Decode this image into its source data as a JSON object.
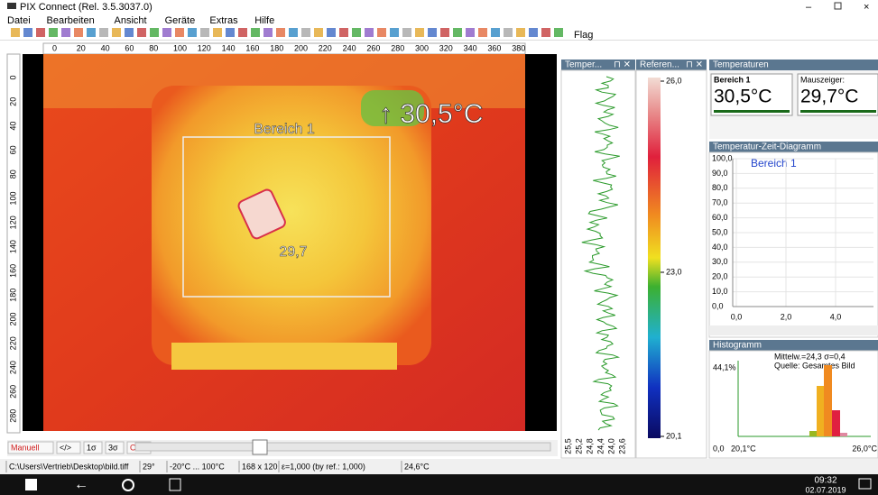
{
  "window": {
    "title": "PIX Connect (Rel. 3.5.3037.0)"
  },
  "menu": [
    "Datei",
    "Bearbeiten",
    "Ansicht",
    "Geräte",
    "Extras",
    "Hilfe"
  ],
  "toolbar": {
    "flag": "Flag"
  },
  "ruler": {
    "top": [
      "0",
      "20",
      "40",
      "60",
      "80",
      "100",
      "120",
      "140",
      "160",
      "180",
      "200",
      "220",
      "240",
      "260",
      "280",
      "300",
      "320",
      "340",
      "360",
      "380"
    ],
    "left": [
      "0",
      "20",
      "40",
      "60",
      "80",
      "100",
      "120",
      "140",
      "160",
      "180",
      "200",
      "220",
      "240",
      "260",
      "280"
    ]
  },
  "image": {
    "area_label": "Bereich 1",
    "max_label": "↑ 30,5°C",
    "area_value": "29,7"
  },
  "image_controls": [
    "Manuell",
    "</>",
    "1σ",
    "3σ",
    "OPT"
  ],
  "panels": {
    "trace": {
      "title": "Temper...",
      "scale": [
        "25,5",
        "25,2",
        "24,8",
        "24,4",
        "24,0",
        "23,6"
      ]
    },
    "reference": {
      "title": "Referen...",
      "labels": [
        "26,0",
        "23,0",
        "20,1"
      ]
    }
  },
  "temperatures": {
    "title": "Temperaturen",
    "area": {
      "name": "Bereich 1",
      "value": "30,5°C"
    },
    "cursor": {
      "name": "Mauszeiger:",
      "value": "29,7°C"
    }
  },
  "diagram": {
    "title": "Temperatur-Zeit-Diagramm",
    "legend": "Bereich 1",
    "yticks": [
      "100,0",
      "90,0",
      "80,0",
      "70,0",
      "60,0",
      "50,0",
      "40,0",
      "30,0",
      "20,0",
      "10,0",
      "0,0"
    ],
    "xticks": [
      "0,0",
      "2,0",
      "4,0"
    ]
  },
  "histogram": {
    "title": "Histogramm",
    "stats": "Mittelw.=24,3 σ=0,4",
    "source": "Quelle: Gesamtes Bild",
    "max": "44,1%",
    "xmin": "0,0",
    "left": "20,1°C",
    "right": "26,0°C"
  },
  "status": [
    "C:\\Users\\Vertrieb\\Desktop\\bild.tiff",
    "29°",
    "-20°C ... 100°C",
    "168 x 120",
    "ε=1,000 (by ref.: 1,000)",
    "24,6°C"
  ],
  "taskbar": {
    "time": "09:32",
    "date": "02.07.2019"
  }
}
